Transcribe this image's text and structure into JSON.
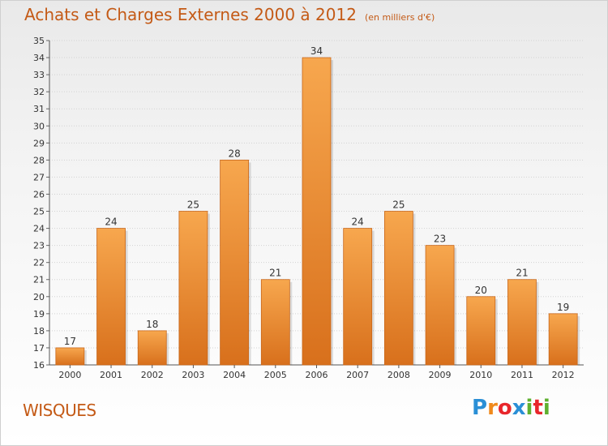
{
  "header": {
    "title": "Achats et Charges Externes 2000 à 2012",
    "subtitle": "(en milliers d'€)"
  },
  "footer": {
    "town": "WISQUES",
    "brand": "Proxiti",
    "brand_colors": [
      "#2a8fd6",
      "#f08a1c",
      "#e8262b",
      "#2a8fd6",
      "#5fb030",
      "#e8262b",
      "#5fb030"
    ]
  },
  "colors": {
    "bar_top": "#f7a74e",
    "bar_bottom": "#d8701c",
    "text_accent": "#c45a16"
  },
  "chart_data": {
    "type": "bar",
    "categories": [
      "2000",
      "2001",
      "2002",
      "2003",
      "2004",
      "2005",
      "2006",
      "2007",
      "2008",
      "2009",
      "2010",
      "2011",
      "2012"
    ],
    "values": [
      17,
      24,
      18,
      25,
      28,
      21,
      34,
      24,
      25,
      23,
      20,
      21,
      19
    ],
    "title": "Achats et Charges Externes 2000 à 2012",
    "xlabel": "",
    "ylabel": "",
    "ylim": [
      16,
      35
    ],
    "grid": true,
    "legend": "none"
  }
}
